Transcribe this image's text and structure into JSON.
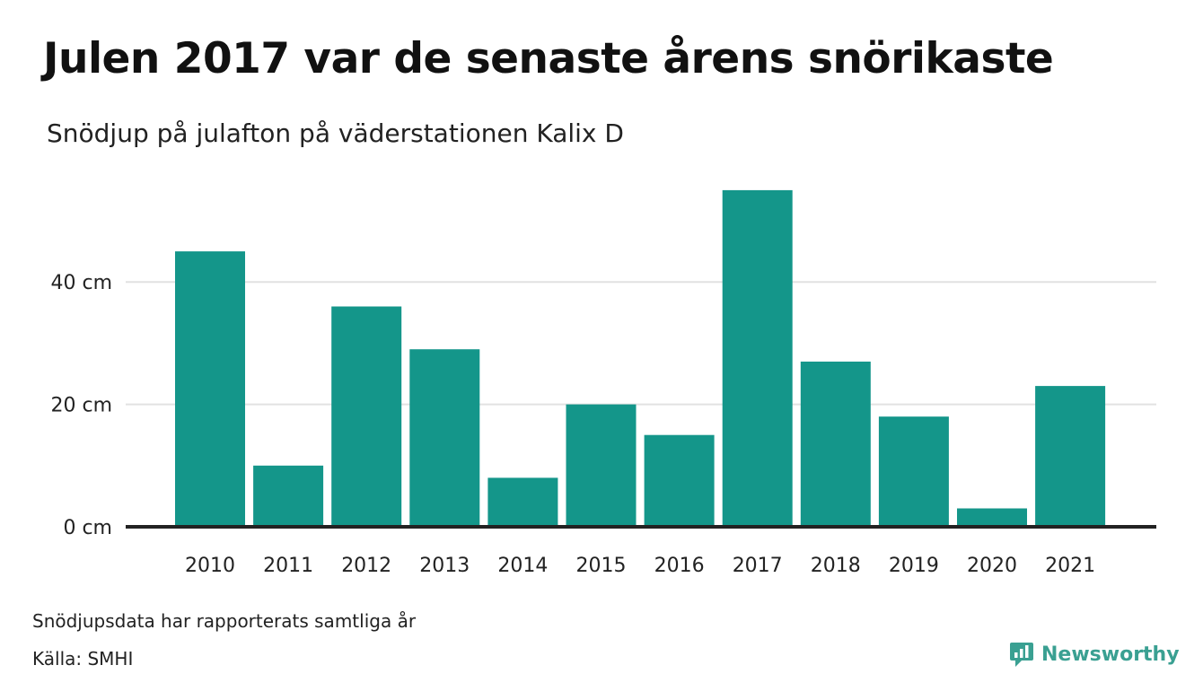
{
  "colors": {
    "bar": "#14968a",
    "grid": "#e2e2e2",
    "axis": "#222222",
    "logo": "#3aa092"
  },
  "chart_data": {
    "type": "bar",
    "title": "Julen 2017 var de senaste årens snörikaste",
    "subtitle": "Snödjup på julafton på väderstationen Kalix D",
    "xlabel": "",
    "ylabel": "",
    "categories": [
      "2010",
      "2011",
      "2012",
      "2013",
      "2014",
      "2015",
      "2016",
      "2017",
      "2018",
      "2019",
      "2020",
      "2021"
    ],
    "values": [
      45,
      10,
      36,
      29,
      8,
      20,
      15,
      55,
      27,
      18,
      3,
      23
    ],
    "unit": "cm",
    "ylim": [
      0,
      57.5
    ],
    "yticks": [
      0,
      20,
      40
    ],
    "ytick_labels": [
      "0 cm",
      "20 cm",
      "40 cm"
    ],
    "grid": true,
    "legend": "none"
  },
  "footer": {
    "note": "Snödjupsdata har rapporterats samtliga år",
    "source": "Källa: SMHI"
  },
  "logo": {
    "name": "Newsworthy",
    "icon": "newsworthy-logo-icon"
  }
}
